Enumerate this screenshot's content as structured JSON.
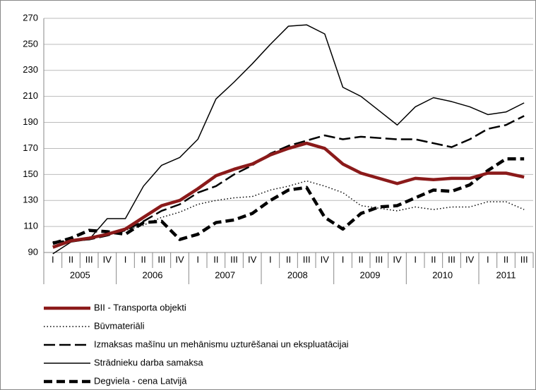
{
  "chart_data": {
    "type": "line",
    "categories": [
      "I",
      "II",
      "III",
      "IV",
      "I",
      "II",
      "III",
      "IV",
      "I",
      "II",
      "III",
      "IV",
      "I",
      "II",
      "III",
      "IV",
      "I",
      "II",
      "III",
      "IV",
      "I",
      "II",
      "III",
      "IV",
      "I",
      "II",
      "III"
    ],
    "years": [
      "2005",
      "2006",
      "2007",
      "2008",
      "2009",
      "2010",
      "2011"
    ],
    "ylim": [
      90,
      270
    ],
    "yticks": [
      90,
      110,
      130,
      150,
      170,
      190,
      210,
      230,
      250,
      270
    ],
    "grid": true,
    "legend": "bottom",
    "series": [
      {
        "name": "BII - Transporta objekti",
        "color": "#8b1a1a",
        "line_style": "solid",
        "line_width": "thick",
        "values": [
          94,
          99,
          101,
          104,
          108,
          117,
          126,
          130,
          139,
          149,
          154,
          158,
          165,
          170,
          174,
          170,
          158,
          151,
          147,
          143,
          147,
          146,
          147,
          147,
          151,
          151,
          148
        ]
      },
      {
        "name": "Būvmateriāli",
        "color": "#000000",
        "line_style": "dotted",
        "line_width": "thin",
        "values": [
          95,
          99,
          101,
          104,
          107,
          111,
          117,
          121,
          127,
          130,
          132,
          133,
          138,
          141,
          145,
          141,
          136,
          126,
          124,
          122,
          125,
          123,
          125,
          125,
          129,
          129,
          123
        ]
      },
      {
        "name": "Izmaksas mašīnu un mehānismu uzturēšanai un ekspluatācijai",
        "color": "#000000",
        "line_style": "dashed",
        "line_width": "medium",
        "values": [
          98,
          99,
          100,
          103,
          107,
          114,
          122,
          127,
          136,
          141,
          150,
          157,
          166,
          172,
          176,
          180,
          177,
          179,
          178,
          177,
          177,
          174,
          171,
          177,
          185,
          188,
          195
        ]
      },
      {
        "name": "Strādnieku darba samaksa",
        "color": "#000000",
        "line_style": "solid",
        "line_width": "thin",
        "values": [
          89,
          98,
          100,
          116,
          116,
          141,
          157,
          163,
          177,
          208,
          221,
          235,
          250,
          264,
          265,
          258,
          217,
          210,
          199,
          188,
          202,
          209,
          206,
          202,
          196,
          198,
          205
        ]
      },
      {
        "name": "Degviela - cena Latvijā",
        "color": "#000000",
        "line_style": "dashed",
        "line_width": "thick",
        "values": [
          97,
          101,
          107,
          106,
          104,
          113,
          114,
          100,
          104,
          113,
          115,
          120,
          130,
          138,
          140,
          117,
          108,
          120,
          125,
          126,
          132,
          138,
          137,
          142,
          153,
          162,
          162
        ]
      }
    ]
  }
}
